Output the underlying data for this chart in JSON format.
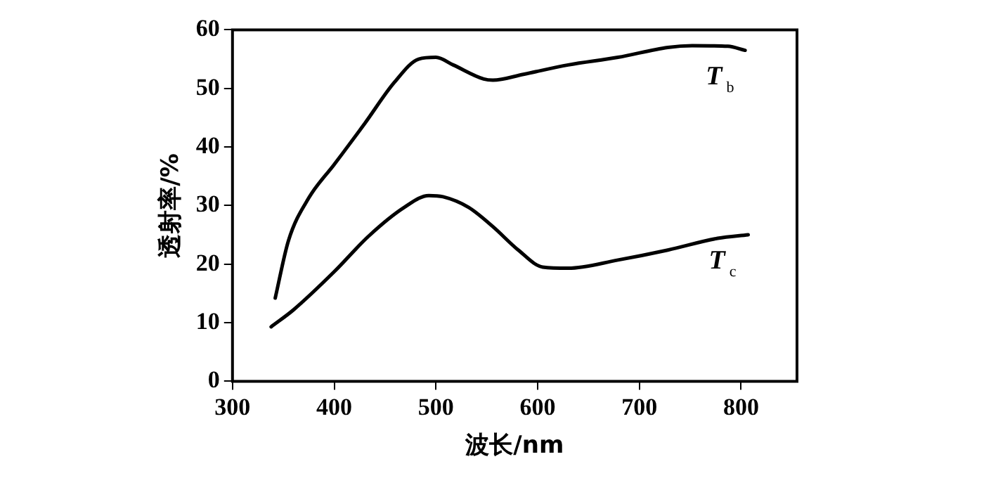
{
  "chart_data": {
    "type": "line",
    "xlabel": "波长/nm",
    "ylabel": "透射率/%",
    "xlim": [
      300,
      855
    ],
    "xticks": [
      300,
      400,
      500,
      600,
      700,
      800
    ],
    "ylim": [
      0,
      60
    ],
    "yticks": [
      0,
      10,
      20,
      30,
      40,
      50,
      60
    ],
    "grid": false,
    "legend": false,
    "marker": "none",
    "line_style": "solid",
    "series": [
      {
        "name": "T$_{b}$",
        "color": "#000000",
        "x": [
          342,
          355,
          375,
          400,
          430,
          459,
          483,
          500,
          517,
          547,
          556,
          586,
          630,
          679,
          728,
          752,
          787,
          804
        ],
        "values": [
          14.2,
          24,
          31.3,
          37,
          44,
          51,
          55,
          55.3,
          54,
          51.6,
          51.4,
          52.4,
          54,
          55.3,
          57,
          57.3,
          57.2,
          56.5
        ]
      },
      {
        "name": "T$_{c}$",
        "color": "#000000",
        "x": [
          338,
          360,
          400,
          434,
          469,
          493,
          507,
          532,
          556,
          581,
          605,
          630,
          679,
          728,
          777,
          807
        ],
        "values": [
          9.3,
          12.2,
          18.7,
          24.8,
          29.7,
          31.7,
          31.5,
          29.7,
          26.4,
          22.4,
          19.5,
          19.3,
          20.7,
          22.4,
          24.4,
          25
        ]
      }
    ]
  }
}
